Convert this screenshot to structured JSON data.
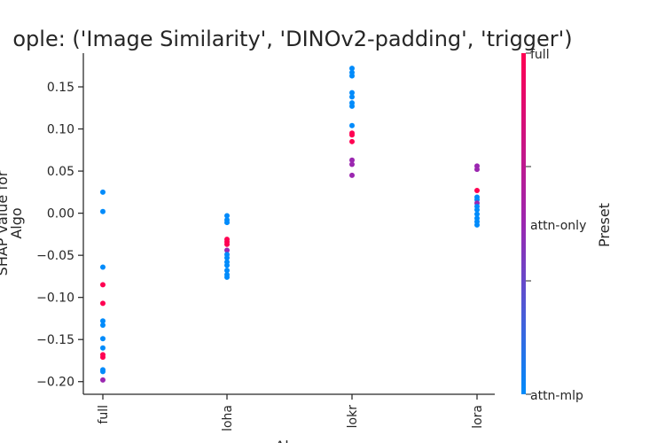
{
  "chart_data": {
    "type": "scatter",
    "title": "ople: ('Image Similarity', 'DINOv2-padding', 'trigger')",
    "xlabel": "Al",
    "ylabel_line1": "SHAP value for",
    "ylabel_line2": "Algo",
    "categories": [
      "full",
      "loha",
      "lokr",
      "lora"
    ],
    "ylim": [
      -0.215,
      0.19
    ],
    "yticks": [
      0.15,
      0.1,
      0.05,
      0.0,
      -0.05,
      -0.1,
      -0.15,
      -0.2
    ],
    "ytick_labels": [
      "0.15",
      "0.10",
      "0.05",
      "0.00",
      "−0.05",
      "−0.10",
      "−0.15",
      "−0.20"
    ],
    "colorbar": {
      "label": "Preset",
      "levels": [
        {
          "name": "full",
          "color": "#ff0052"
        },
        {
          "name": "attn-only",
          "color": "#9b27b0"
        },
        {
          "name": "attn-mlp",
          "color": "#008bfb"
        }
      ]
    },
    "points": [
      {
        "x": "full",
        "y": 0.025,
        "preset": "attn-mlp"
      },
      {
        "x": "full",
        "y": 0.002,
        "preset": "attn-mlp"
      },
      {
        "x": "full",
        "y": -0.064,
        "preset": "attn-mlp"
      },
      {
        "x": "full",
        "y": -0.085,
        "preset": "full"
      },
      {
        "x": "full",
        "y": -0.107,
        "preset": "full"
      },
      {
        "x": "full",
        "y": -0.128,
        "preset": "attn-mlp"
      },
      {
        "x": "full",
        "y": -0.133,
        "preset": "attn-mlp"
      },
      {
        "x": "full",
        "y": -0.149,
        "preset": "attn-mlp"
      },
      {
        "x": "full",
        "y": -0.16,
        "preset": "attn-mlp"
      },
      {
        "x": "full",
        "y": -0.168,
        "preset": "full"
      },
      {
        "x": "full",
        "y": -0.171,
        "preset": "full"
      },
      {
        "x": "full",
        "y": -0.186,
        "preset": "attn-mlp"
      },
      {
        "x": "full",
        "y": -0.188,
        "preset": "attn-mlp"
      },
      {
        "x": "full",
        "y": -0.198,
        "preset": "attn-only"
      },
      {
        "x": "loha",
        "y": -0.003,
        "preset": "attn-mlp"
      },
      {
        "x": "loha",
        "y": -0.008,
        "preset": "attn-mlp"
      },
      {
        "x": "loha",
        "y": -0.011,
        "preset": "attn-mlp"
      },
      {
        "x": "loha",
        "y": -0.031,
        "preset": "full"
      },
      {
        "x": "loha",
        "y": -0.034,
        "preset": "full"
      },
      {
        "x": "loha",
        "y": -0.037,
        "preset": "full"
      },
      {
        "x": "loha",
        "y": -0.044,
        "preset": "attn-only"
      },
      {
        "x": "loha",
        "y": -0.049,
        "preset": "attn-mlp"
      },
      {
        "x": "loha",
        "y": -0.053,
        "preset": "attn-mlp"
      },
      {
        "x": "loha",
        "y": -0.058,
        "preset": "attn-mlp"
      },
      {
        "x": "loha",
        "y": -0.062,
        "preset": "attn-mlp"
      },
      {
        "x": "loha",
        "y": -0.068,
        "preset": "attn-mlp"
      },
      {
        "x": "loha",
        "y": -0.073,
        "preset": "attn-mlp"
      },
      {
        "x": "loha",
        "y": -0.076,
        "preset": "attn-mlp"
      },
      {
        "x": "lokr",
        "y": 0.172,
        "preset": "attn-mlp"
      },
      {
        "x": "lokr",
        "y": 0.167,
        "preset": "attn-mlp"
      },
      {
        "x": "lokr",
        "y": 0.163,
        "preset": "attn-mlp"
      },
      {
        "x": "lokr",
        "y": 0.143,
        "preset": "attn-mlp"
      },
      {
        "x": "lokr",
        "y": 0.138,
        "preset": "attn-mlp"
      },
      {
        "x": "lokr",
        "y": 0.131,
        "preset": "attn-mlp"
      },
      {
        "x": "lokr",
        "y": 0.127,
        "preset": "attn-mlp"
      },
      {
        "x": "lokr",
        "y": 0.104,
        "preset": "attn-mlp"
      },
      {
        "x": "lokr",
        "y": 0.095,
        "preset": "full"
      },
      {
        "x": "lokr",
        "y": 0.093,
        "preset": "full"
      },
      {
        "x": "lokr",
        "y": 0.085,
        "preset": "full"
      },
      {
        "x": "lokr",
        "y": 0.063,
        "preset": "attn-only"
      },
      {
        "x": "lokr",
        "y": 0.058,
        "preset": "attn-only"
      },
      {
        "x": "lokr",
        "y": 0.045,
        "preset": "attn-only"
      },
      {
        "x": "lora",
        "y": 0.056,
        "preset": "attn-only"
      },
      {
        "x": "lora",
        "y": 0.052,
        "preset": "attn-only"
      },
      {
        "x": "lora",
        "y": 0.027,
        "preset": "full"
      },
      {
        "x": "lora",
        "y": 0.019,
        "preset": "attn-mlp"
      },
      {
        "x": "lora",
        "y": 0.016,
        "preset": "attn-mlp"
      },
      {
        "x": "lora",
        "y": 0.012,
        "preset": "attn-only"
      },
      {
        "x": "lora",
        "y": 0.008,
        "preset": "attn-mlp"
      },
      {
        "x": "lora",
        "y": 0.004,
        "preset": "attn-mlp"
      },
      {
        "x": "lora",
        "y": -0.001,
        "preset": "attn-mlp"
      },
      {
        "x": "lora",
        "y": -0.006,
        "preset": "attn-mlp"
      },
      {
        "x": "lora",
        "y": -0.01,
        "preset": "attn-mlp"
      },
      {
        "x": "lora",
        "y": -0.014,
        "preset": "attn-mlp"
      }
    ]
  }
}
